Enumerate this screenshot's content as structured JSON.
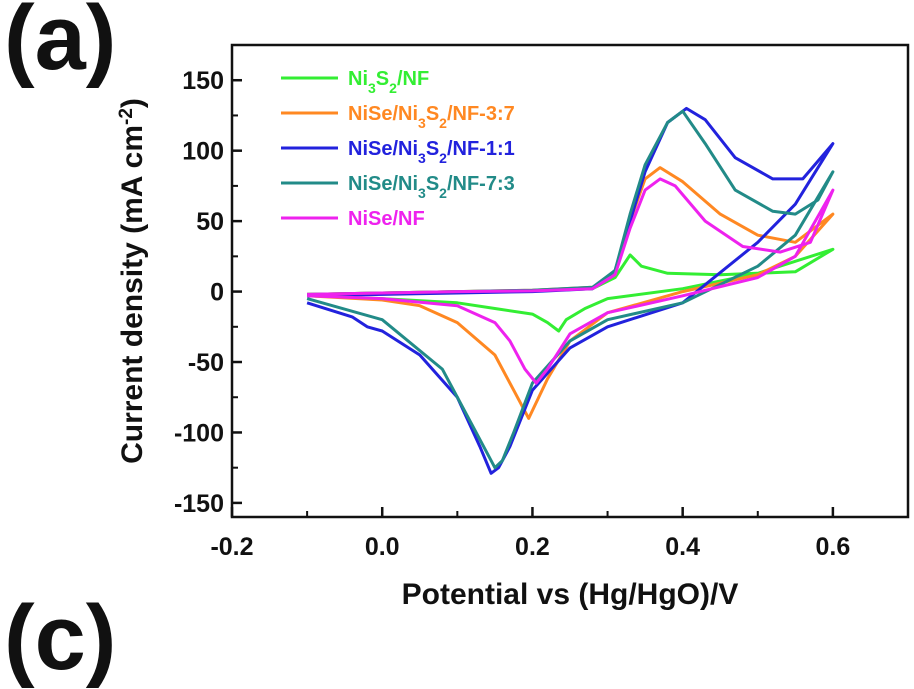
{
  "panel_label": "(a)",
  "next_panel_label": "(c)",
  "chart_data": {
    "type": "line",
    "title": "",
    "xlabel": "Potential vs (Hg/HgO)/V",
    "ylabel": "Current density (mA cm",
    "ylabel_sup": "-2",
    "ylabel_end": ")",
    "xlim": [
      -0.2,
      0.7
    ],
    "ylim": [
      -160,
      175
    ],
    "xticks": [
      -0.2,
      0.0,
      0.2,
      0.4,
      0.6
    ],
    "xtick_labels": [
      "-0.2",
      "0.0",
      "0.2",
      "0.4",
      "0.6"
    ],
    "yticks": [
      -150,
      -100,
      -50,
      0,
      50,
      100,
      150
    ],
    "ytick_labels": [
      "-150",
      "-100",
      "-50",
      "0",
      "50",
      "100",
      "150"
    ],
    "grid": false,
    "legend_position": "top-left",
    "series": [
      {
        "name": "Ni3S2/NF",
        "legend": [
          {
            "t": "Ni"
          },
          {
            "t": "3",
            "sub": true
          },
          {
            "t": "S"
          },
          {
            "t": "2",
            "sub": true
          },
          {
            "t": "/NF"
          }
        ],
        "color": "#33ee33",
        "x": [
          -0.1,
          0.0,
          0.1,
          0.2,
          0.28,
          0.31,
          0.33,
          0.345,
          0.38,
          0.45,
          0.55,
          0.6,
          0.6,
          0.5,
          0.4,
          0.3,
          0.27,
          0.245,
          0.235,
          0.22,
          0.2,
          0.15,
          0.1,
          0.0,
          -0.1
        ],
        "y": [
          -2,
          -1,
          0,
          0.5,
          2,
          10,
          26,
          18,
          13,
          12,
          14,
          30,
          30,
          13,
          2,
          -5,
          -12,
          -20,
          -28,
          -22,
          -16,
          -12,
          -8,
          -5,
          -3
        ]
      },
      {
        "name": "NiSe/Ni3S2/NF-3:7",
        "legend": [
          {
            "t": "NiSe/Ni"
          },
          {
            "t": "3",
            "sub": true
          },
          {
            "t": "S"
          },
          {
            "t": "2",
            "sub": true
          },
          {
            "t": "/NF-3:7"
          }
        ],
        "color": "#ff8822",
        "x": [
          -0.1,
          0.0,
          0.1,
          0.2,
          0.28,
          0.31,
          0.33,
          0.35,
          0.37,
          0.4,
          0.45,
          0.5,
          0.55,
          0.6,
          0.6,
          0.55,
          0.5,
          0.4,
          0.3,
          0.25,
          0.22,
          0.195,
          0.175,
          0.15,
          0.1,
          0.05,
          0.0,
          -0.1
        ],
        "y": [
          -2,
          -1,
          0,
          1,
          3,
          12,
          50,
          80,
          88,
          78,
          55,
          40,
          35,
          55,
          55,
          25,
          12,
          0,
          -15,
          -35,
          -62,
          -90,
          -70,
          -45,
          -22,
          -10,
          -6,
          -3
        ]
      },
      {
        "name": "NiSe/Ni3S2/NF-1:1",
        "legend": [
          {
            "t": "NiSe/Ni"
          },
          {
            "t": "3",
            "sub": true
          },
          {
            "t": "S"
          },
          {
            "t": "2",
            "sub": true
          },
          {
            "t": "/NF-1:1"
          }
        ],
        "color": "#2222dd",
        "x": [
          -0.1,
          0.0,
          0.1,
          0.2,
          0.28,
          0.31,
          0.33,
          0.35,
          0.38,
          0.405,
          0.43,
          0.47,
          0.52,
          0.56,
          0.6,
          0.6,
          0.55,
          0.5,
          0.4,
          0.3,
          0.25,
          0.2,
          0.17,
          0.155,
          0.145,
          0.13,
          0.1,
          0.05,
          0.0,
          -0.02,
          -0.04,
          -0.1
        ],
        "y": [
          -3,
          -2,
          -1,
          0,
          2,
          15,
          50,
          85,
          120,
          130,
          122,
          95,
          80,
          80,
          105,
          105,
          62,
          35,
          -8,
          -25,
          -40,
          -70,
          -110,
          -125,
          -129,
          -110,
          -75,
          -45,
          -28,
          -25,
          -18,
          -8
        ]
      },
      {
        "name": "NiSe/Ni3S2/NF-7:3",
        "legend": [
          {
            "t": "NiSe/Ni"
          },
          {
            "t": "3",
            "sub": true
          },
          {
            "t": "S"
          },
          {
            "t": "2",
            "sub": true
          },
          {
            "t": "/NF-7:3"
          }
        ],
        "color": "#228b88",
        "x": [
          -0.1,
          0.0,
          0.1,
          0.2,
          0.28,
          0.31,
          0.33,
          0.35,
          0.38,
          0.4,
          0.43,
          0.47,
          0.52,
          0.55,
          0.58,
          0.6,
          0.6,
          0.55,
          0.5,
          0.4,
          0.3,
          0.25,
          0.2,
          0.175,
          0.16,
          0.15,
          0.12,
          0.08,
          0.0,
          -0.1
        ],
        "y": [
          -2,
          -1,
          0,
          1,
          3,
          15,
          55,
          90,
          120,
          128,
          105,
          72,
          57,
          55,
          65,
          85,
          85,
          40,
          18,
          -8,
          -20,
          -35,
          -65,
          -100,
          -120,
          -125,
          -95,
          -55,
          -20,
          -5
        ]
      },
      {
        "name": "NiSe/NF",
        "legend": [
          {
            "t": "NiSe/NF"
          }
        ],
        "color": "#ee22ee",
        "x": [
          -0.1,
          0.0,
          0.1,
          0.2,
          0.28,
          0.31,
          0.33,
          0.35,
          0.37,
          0.39,
          0.43,
          0.48,
          0.53,
          0.57,
          0.6,
          0.6,
          0.55,
          0.5,
          0.4,
          0.3,
          0.25,
          0.22,
          0.205,
          0.19,
          0.17,
          0.15,
          0.1,
          0.0,
          -0.1
        ],
        "y": [
          -2,
          -1,
          0,
          0.5,
          2,
          12,
          45,
          72,
          80,
          75,
          50,
          32,
          28,
          35,
          72,
          72,
          25,
          10,
          -3,
          -15,
          -30,
          -55,
          -65,
          -55,
          -35,
          -22,
          -10,
          -5,
          -3
        ]
      }
    ]
  }
}
